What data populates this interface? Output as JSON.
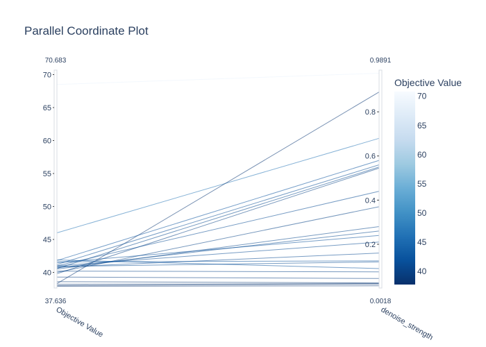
{
  "chart_data": {
    "type": "parallel_coordinates",
    "title": "Parallel Coordinate Plot",
    "dimensions": [
      {
        "label": "Objective Value",
        "range": [
          37.636,
          70.683
        ],
        "range_min_label": "37.636",
        "range_max_label": "70.683",
        "ticks": [
          40,
          45,
          50,
          55,
          60,
          65,
          70
        ]
      },
      {
        "label": "denoise_strength",
        "range": [
          0.0018,
          0.9891
        ],
        "range_min_label": "0.0018",
        "range_max_label": "0.9891",
        "ticks": [
          0.2,
          0.4,
          0.6,
          0.8
        ]
      }
    ],
    "lines": [
      {
        "objective": 68.5,
        "denoise": 0.975
      },
      {
        "objective": 46.0,
        "denoise": 0.68
      },
      {
        "objective": 38.3,
        "denoise": 0.89
      },
      {
        "objective": 41.8,
        "denoise": 0.58
      },
      {
        "objective": 41.2,
        "denoise": 0.56
      },
      {
        "objective": 40.6,
        "denoise": 0.55
      },
      {
        "objective": 39.8,
        "denoise": 0.545
      },
      {
        "objective": 41.0,
        "denoise": 0.44
      },
      {
        "objective": 40.0,
        "denoise": 0.37
      },
      {
        "objective": 40.5,
        "denoise": 0.28
      },
      {
        "objective": 40.7,
        "denoise": 0.26
      },
      {
        "objective": 41.5,
        "denoise": 0.24
      },
      {
        "objective": 41.0,
        "denoise": 0.21
      },
      {
        "objective": 40.8,
        "denoise": 0.16
      },
      {
        "objective": 40.9,
        "denoise": 0.12
      },
      {
        "objective": 41.6,
        "denoise": 0.125
      },
      {
        "objective": 41.9,
        "denoise": 0.09
      },
      {
        "objective": 40.2,
        "denoise": 0.075
      },
      {
        "objective": 39.3,
        "denoise": 0.045
      },
      {
        "objective": 38.6,
        "denoise": 0.025
      },
      {
        "objective": 38.2,
        "denoise": 0.022
      },
      {
        "objective": 38.0,
        "denoise": 0.02
      },
      {
        "objective": 37.9,
        "denoise": 0.012
      }
    ],
    "colorbar": {
      "title": "Objective Value",
      "range": [
        37.636,
        70.683
      ],
      "ticks": [
        40,
        45,
        50,
        55,
        60,
        65,
        70
      ],
      "colorscale": [
        "#08306b",
        "#08519c",
        "#2171b5",
        "#4292c6",
        "#6baed6",
        "#9ecae1",
        "#c6dbef",
        "#deebf7",
        "#f7fbff"
      ]
    }
  }
}
